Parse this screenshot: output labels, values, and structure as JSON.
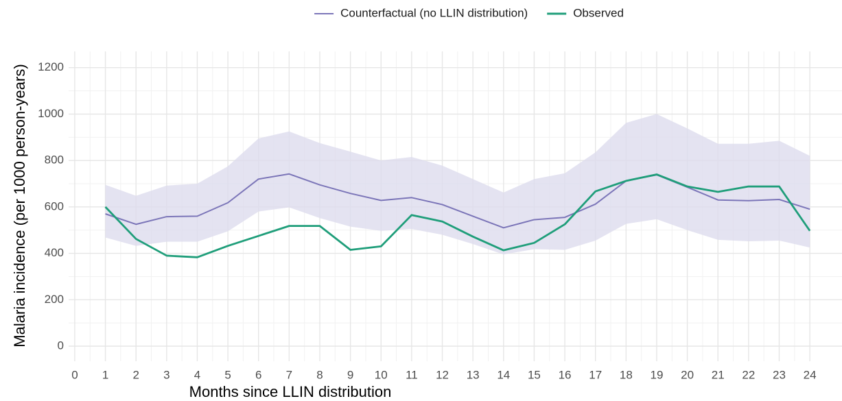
{
  "chart_data": {
    "type": "line",
    "xlabel": "Months since LLIN distribution",
    "ylabel": "Malaria incidence (per 1000 person-years)",
    "x": [
      1,
      2,
      3,
      4,
      5,
      6,
      7,
      8,
      9,
      10,
      11,
      12,
      13,
      14,
      15,
      16,
      17,
      18,
      19,
      20,
      21,
      22,
      23,
      24
    ],
    "series": [
      {
        "name": "Counterfactual (no LLIN distribution)",
        "color": "#7b75b8",
        "band_color": "#dddcee",
        "values": [
          570,
          525,
          558,
          560,
          618,
          720,
          742,
          695,
          658,
          628,
          640,
          610,
          560,
          510,
          545,
          555,
          612,
          712,
          738,
          685,
          630,
          627,
          632,
          590
        ],
        "lower": [
          468,
          432,
          450,
          450,
          495,
          580,
          598,
          552,
          515,
          497,
          505,
          480,
          440,
          395,
          418,
          415,
          455,
          527,
          547,
          500,
          458,
          452,
          455,
          425
        ],
        "upper": [
          695,
          648,
          692,
          700,
          775,
          895,
          925,
          875,
          838,
          800,
          815,
          778,
          720,
          662,
          720,
          745,
          835,
          962,
          1000,
          938,
          872,
          872,
          885,
          820
        ]
      },
      {
        "name": "Observed",
        "color": "#1f9e7a",
        "values": [
          600,
          462,
          390,
          383,
          432,
          475,
          518,
          518,
          415,
          430,
          565,
          537,
          472,
          413,
          445,
          525,
          667,
          712,
          740,
          688,
          665,
          688,
          688,
          497
        ]
      }
    ],
    "xlim": [
      -0.2,
      25.05
    ],
    "xticks": [
      0,
      1,
      2,
      3,
      4,
      5,
      6,
      7,
      8,
      9,
      10,
      11,
      12,
      13,
      14,
      15,
      16,
      17,
      18,
      19,
      20,
      21,
      22,
      23,
      24
    ],
    "ylim": [
      -65,
      1270
    ],
    "yticks": [
      0,
      200,
      400,
      600,
      800,
      1000,
      1200
    ],
    "grid": true,
    "legend": "top"
  }
}
